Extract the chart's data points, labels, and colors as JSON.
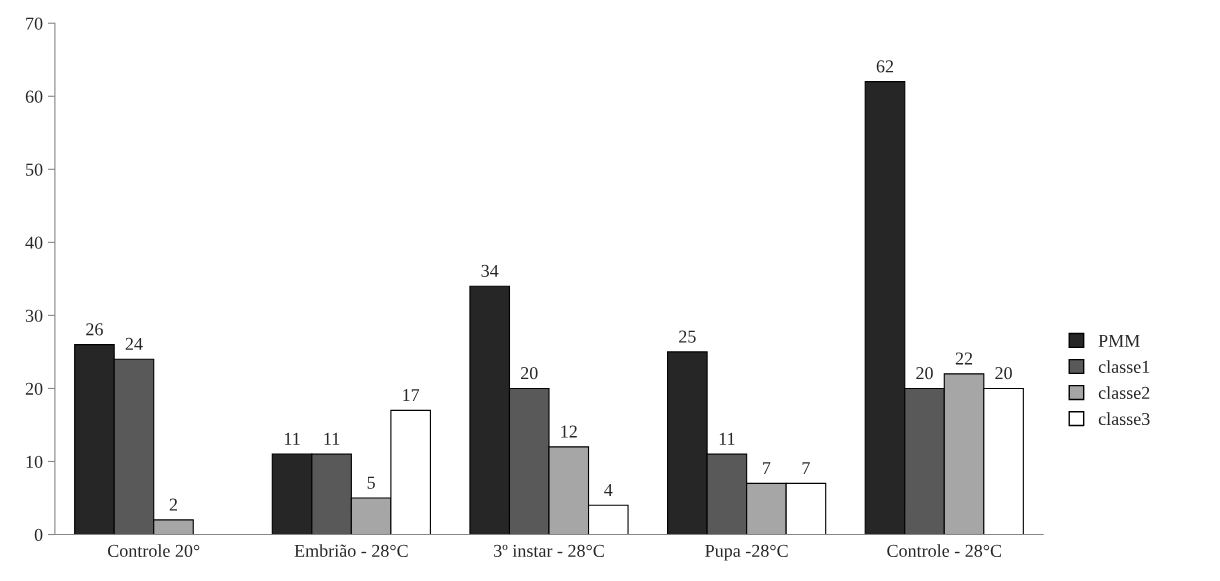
{
  "chart_data": {
    "type": "bar",
    "categories": [
      "Controle 20°",
      "Embrião - 28°C",
      "3º instar - 28°C",
      "Pupa -28°C",
      "Controle - 28°C"
    ],
    "series": [
      {
        "name": "PMM",
        "color": "#262626",
        "values": [
          26,
          11,
          34,
          25,
          62
        ]
      },
      {
        "name": "classe1",
        "color": "#595959",
        "values": [
          24,
          11,
          20,
          11,
          20
        ]
      },
      {
        "name": "classe2",
        "color": "#a6a6a6",
        "values": [
          2,
          5,
          12,
          7,
          22
        ]
      },
      {
        "name": "classe3",
        "color": "#ffffff",
        "values": [
          null,
          17,
          4,
          7,
          20
        ]
      }
    ],
    "ylim": [
      0,
      70
    ],
    "yticks": [
      0,
      10,
      20,
      30,
      40,
      50,
      60,
      70
    ],
    "data_labels": true,
    "legend": "right",
    "grid": false
  }
}
